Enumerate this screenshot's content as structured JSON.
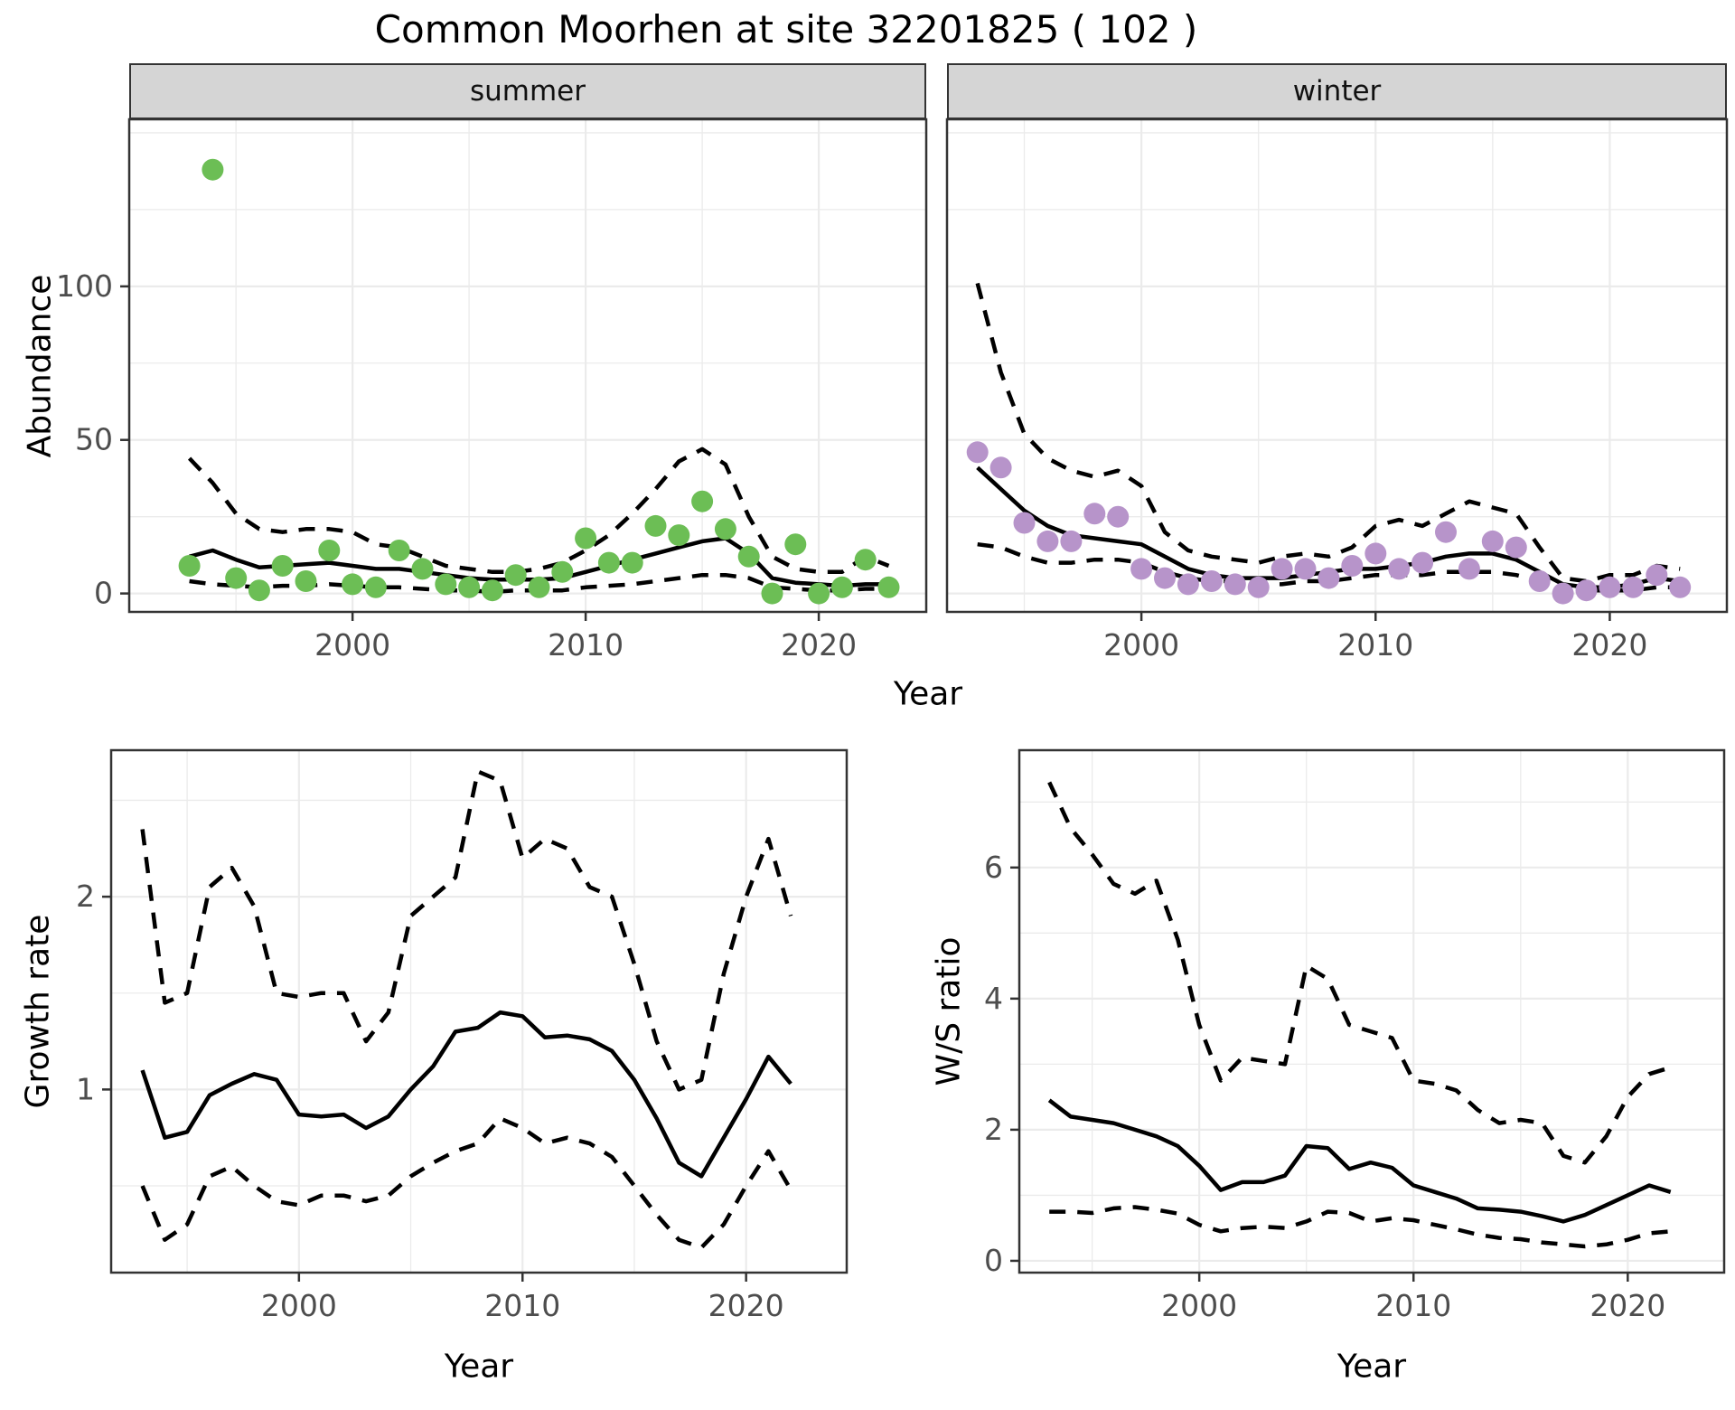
{
  "title": "Common Moorhen at site 32201825 ( 102 )",
  "facets": [
    "summer",
    "winter"
  ],
  "axes": {
    "abundance": "Abundance",
    "year_top": "Year",
    "growth": "Growth rate",
    "ws": "W/S ratio",
    "year_growth": "Year",
    "year_ws": "Year"
  },
  "colors": {
    "summer_point": "#6CBE55",
    "winter_point": "#B794CA",
    "line": "#000000",
    "grid": "#EBEBEB",
    "strip_bg": "#D5D5D5",
    "border": "#333333",
    "tick_text": "#4D4D4D"
  },
  "chart_data": [
    {
      "name": "abundance-summer",
      "type": "scatter",
      "facet": "summer",
      "title": "Abundance, summer facet: observed counts (points), model fit (solid), 95% CI (dashed)",
      "x": [
        1993,
        1994,
        1995,
        1996,
        1997,
        1998,
        1999,
        2000,
        2001,
        2002,
        2003,
        2004,
        2005,
        2006,
        2007,
        2008,
        2009,
        2010,
        2011,
        2012,
        2013,
        2014,
        2015,
        2016,
        2017,
        2018,
        2019,
        2020,
        2021,
        2022,
        2023
      ],
      "points": [
        9,
        138,
        5,
        1,
        9,
        4,
        14,
        3,
        2,
        14,
        8,
        3,
        2,
        1,
        6,
        2,
        7,
        18,
        10,
        10,
        22,
        19,
        30,
        21,
        12,
        0,
        16,
        0,
        2,
        11,
        2
      ],
      "fit": [
        12,
        14,
        11,
        8.5,
        9,
        9.5,
        10,
        9,
        8,
        8,
        7,
        6,
        5,
        4.5,
        4.5,
        4.5,
        5,
        7,
        9,
        11,
        13,
        15,
        17,
        18,
        13,
        5,
        3.5,
        3,
        2.5,
        3,
        3
      ],
      "hi": [
        44,
        36,
        26,
        21,
        20,
        21,
        21,
        20,
        16,
        15,
        12,
        9,
        8,
        7,
        7,
        8,
        10,
        14,
        19,
        26,
        34,
        43,
        47,
        42,
        25,
        12,
        8,
        7,
        7,
        12,
        9
      ],
      "lo": [
        4,
        3,
        2.5,
        2,
        2.5,
        2.5,
        3,
        2.5,
        2,
        2,
        1.5,
        1,
        1,
        0.5,
        1,
        1,
        1,
        2,
        2.5,
        3,
        4,
        5,
        6,
        6,
        5,
        2,
        1.5,
        1,
        1,
        1.5,
        1.5
      ],
      "point_color": "#6CBE55",
      "xlim": [
        1990.42,
        2024.61
      ],
      "ylim": [
        -6,
        154.4
      ],
      "xticks": [
        2000,
        2010,
        2020
      ],
      "xminor": [
        1995,
        2005,
        2015,
        2025
      ],
      "yticks": [
        0,
        50,
        100
      ],
      "yminor": [
        25,
        75,
        125,
        150
      ],
      "show_ytick_labels": true
    },
    {
      "name": "abundance-winter",
      "type": "scatter",
      "facet": "winter",
      "title": "Abundance, winter facet: observed counts (points), model fit (solid), 95% CI (dashed)",
      "x": [
        1993,
        1994,
        1995,
        1996,
        1997,
        1998,
        1999,
        2000,
        2001,
        2002,
        2003,
        2004,
        2005,
        2006,
        2007,
        2008,
        2009,
        2010,
        2011,
        2012,
        2013,
        2014,
        2015,
        2016,
        2017,
        2018,
        2019,
        2020,
        2021,
        2022,
        2023
      ],
      "points": [
        46,
        41,
        23,
        17,
        17,
        26,
        25,
        8,
        5,
        3,
        4,
        3,
        2,
        8,
        8,
        5,
        9,
        13,
        8,
        10,
        20,
        8,
        17,
        15,
        4,
        0,
        1,
        2,
        2,
        6,
        2
      ],
      "fit": [
        41,
        34,
        27,
        22,
        19,
        18,
        17,
        16,
        12,
        8,
        6,
        5,
        5,
        5,
        6,
        7,
        8,
        8,
        9,
        10,
        12,
        13,
        13,
        11,
        7,
        3,
        2,
        2,
        3,
        5,
        4
      ],
      "hi": [
        101,
        72,
        52,
        44,
        40,
        38,
        40,
        35,
        20,
        14,
        12,
        11,
        10,
        12,
        13,
        12,
        15,
        22,
        24,
        22,
        26,
        30,
        28,
        26,
        15,
        5,
        4,
        6,
        6,
        9,
        8
      ],
      "lo": [
        16,
        15,
        12,
        10,
        10,
        11,
        11,
        10,
        7,
        5,
        4,
        4,
        3,
        3,
        4,
        4,
        5,
        6,
        6,
        6,
        7,
        7,
        7,
        6,
        4,
        1,
        1,
        1,
        1,
        2,
        2
      ],
      "point_color": "#B794CA",
      "xlim": [
        1991.7,
        2025.0
      ],
      "ylim": [
        -6,
        154.4
      ],
      "xticks": [
        2000,
        2010,
        2020
      ],
      "xminor": [
        1995,
        2005,
        2015,
        2025
      ],
      "yticks": [
        0,
        50,
        100
      ],
      "yminor": [
        25,
        75,
        125,
        150
      ],
      "show_ytick_labels": false
    },
    {
      "name": "growth-rate",
      "type": "line",
      "title": "Growth rate over time with 95% CI (dashed)",
      "x": [
        1993,
        1994,
        1995,
        1996,
        1997,
        1998,
        1999,
        2000,
        2001,
        2002,
        2003,
        2004,
        2005,
        2006,
        2007,
        2008,
        2009,
        2010,
        2011,
        2012,
        2013,
        2014,
        2015,
        2016,
        2017,
        2018,
        2019,
        2020,
        2021,
        2022
      ],
      "fit": [
        1.1,
        0.75,
        0.78,
        0.97,
        1.03,
        1.08,
        1.05,
        0.87,
        0.86,
        0.87,
        0.8,
        0.86,
        1.0,
        1.12,
        1.3,
        1.32,
        1.4,
        1.38,
        1.27,
        1.28,
        1.26,
        1.2,
        1.05,
        0.85,
        0.62,
        0.55,
        0.75,
        0.95,
        1.17,
        1.03
      ],
      "hi": [
        2.35,
        1.45,
        1.5,
        2.05,
        2.15,
        1.95,
        1.5,
        1.48,
        1.5,
        1.5,
        1.25,
        1.4,
        1.9,
        2.0,
        2.1,
        2.65,
        2.6,
        2.2,
        2.3,
        2.25,
        2.05,
        2.0,
        1.65,
        1.25,
        1.0,
        1.05,
        1.6,
        2.0,
        2.3,
        1.9
      ],
      "lo": [
        0.5,
        0.22,
        0.3,
        0.55,
        0.6,
        0.5,
        0.42,
        0.4,
        0.45,
        0.45,
        0.42,
        0.45,
        0.55,
        0.62,
        0.68,
        0.72,
        0.85,
        0.8,
        0.72,
        0.75,
        0.72,
        0.65,
        0.5,
        0.35,
        0.22,
        0.18,
        0.3,
        0.5,
        0.68,
        0.48
      ],
      "xlim": [
        1991.6,
        2024.5
      ],
      "ylim": [
        0.05,
        2.76
      ],
      "xticks": [
        2000,
        2010,
        2020
      ],
      "xminor": [
        1995,
        2005,
        2015
      ],
      "yticks": [
        1,
        2
      ],
      "yminor": [
        0.5,
        1.5,
        2.5
      ],
      "show_ytick_labels": true
    },
    {
      "name": "ws-ratio",
      "type": "line",
      "title": "Winter/Summer ratio over time with 95% CI (dashed)",
      "x": [
        1993,
        1994,
        1995,
        1996,
        1997,
        1998,
        1999,
        2000,
        2001,
        2002,
        2003,
        2004,
        2005,
        2006,
        2007,
        2008,
        2009,
        2010,
        2011,
        2012,
        2013,
        2014,
        2015,
        2016,
        2017,
        2018,
        2019,
        2020,
        2021,
        2022
      ],
      "fit": [
        2.45,
        2.2,
        2.15,
        2.1,
        2.0,
        1.9,
        1.75,
        1.45,
        1.08,
        1.2,
        1.2,
        1.3,
        1.75,
        1.72,
        1.4,
        1.5,
        1.42,
        1.15,
        1.05,
        0.95,
        0.8,
        0.78,
        0.75,
        0.68,
        0.6,
        0.7,
        0.85,
        1.0,
        1.15,
        1.05
      ],
      "hi": [
        7.3,
        6.6,
        6.2,
        5.75,
        5.6,
        5.8,
        4.9,
        3.6,
        2.75,
        3.1,
        3.05,
        3.0,
        4.5,
        4.3,
        3.6,
        3.5,
        3.4,
        2.75,
        2.7,
        2.6,
        2.3,
        2.1,
        2.15,
        2.1,
        1.6,
        1.5,
        1.9,
        2.5,
        2.85,
        2.95
      ],
      "lo": [
        0.75,
        0.75,
        0.73,
        0.8,
        0.82,
        0.78,
        0.72,
        0.55,
        0.45,
        0.5,
        0.52,
        0.5,
        0.6,
        0.75,
        0.73,
        0.6,
        0.65,
        0.62,
        0.55,
        0.48,
        0.4,
        0.35,
        0.33,
        0.28,
        0.25,
        0.22,
        0.25,
        0.32,
        0.42,
        0.45
      ],
      "xlim": [
        1991.6,
        2024.5
      ],
      "ylim": [
        -0.18,
        7.79
      ],
      "xticks": [
        2000,
        2010,
        2020
      ],
      "xminor": [
        1995,
        2005,
        2015
      ],
      "yticks": [
        0,
        2,
        4,
        6
      ],
      "yminor": [
        1,
        3,
        5,
        7
      ],
      "show_ytick_labels": true
    }
  ]
}
